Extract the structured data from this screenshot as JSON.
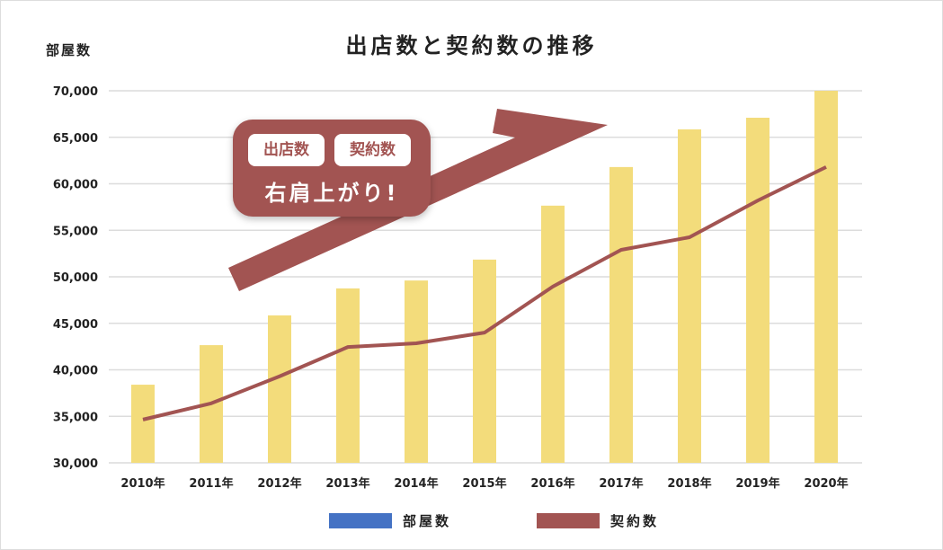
{
  "chart_data": {
    "type": "bar+line",
    "title": "出店数と契約数の推移",
    "ylabel": "部屋数",
    "ylim": [
      30000,
      70000
    ],
    "yticks": [
      "30,000",
      "35,000",
      "40,000",
      "45,000",
      "50,000",
      "55,000",
      "60,000",
      "65,000",
      "70,000"
    ],
    "categories": [
      "2010年",
      "2011年",
      "2012年",
      "2013年",
      "2014年",
      "2015年",
      "2016年",
      "2017年",
      "2018年",
      "2019年",
      "2020年"
    ],
    "series": [
      {
        "name": "部屋数",
        "type": "bar",
        "color": "#f3dc7b",
        "legend_color": "#4472c4",
        "values": [
          38400,
          42650,
          45850,
          48750,
          49600,
          51850,
          57650,
          61800,
          65850,
          67100,
          70000
        ]
      },
      {
        "name": "契約数",
        "type": "line",
        "color": "#a25452",
        "values": [
          34650,
          36400,
          39300,
          42450,
          42850,
          44000,
          48950,
          52900,
          54250,
          58200,
          61800
        ]
      }
    ],
    "grid": true,
    "legend": "bottom"
  },
  "callout": {
    "chip1": "出店数",
    "chip2": "契約数",
    "headline": "右肩上がり!"
  }
}
